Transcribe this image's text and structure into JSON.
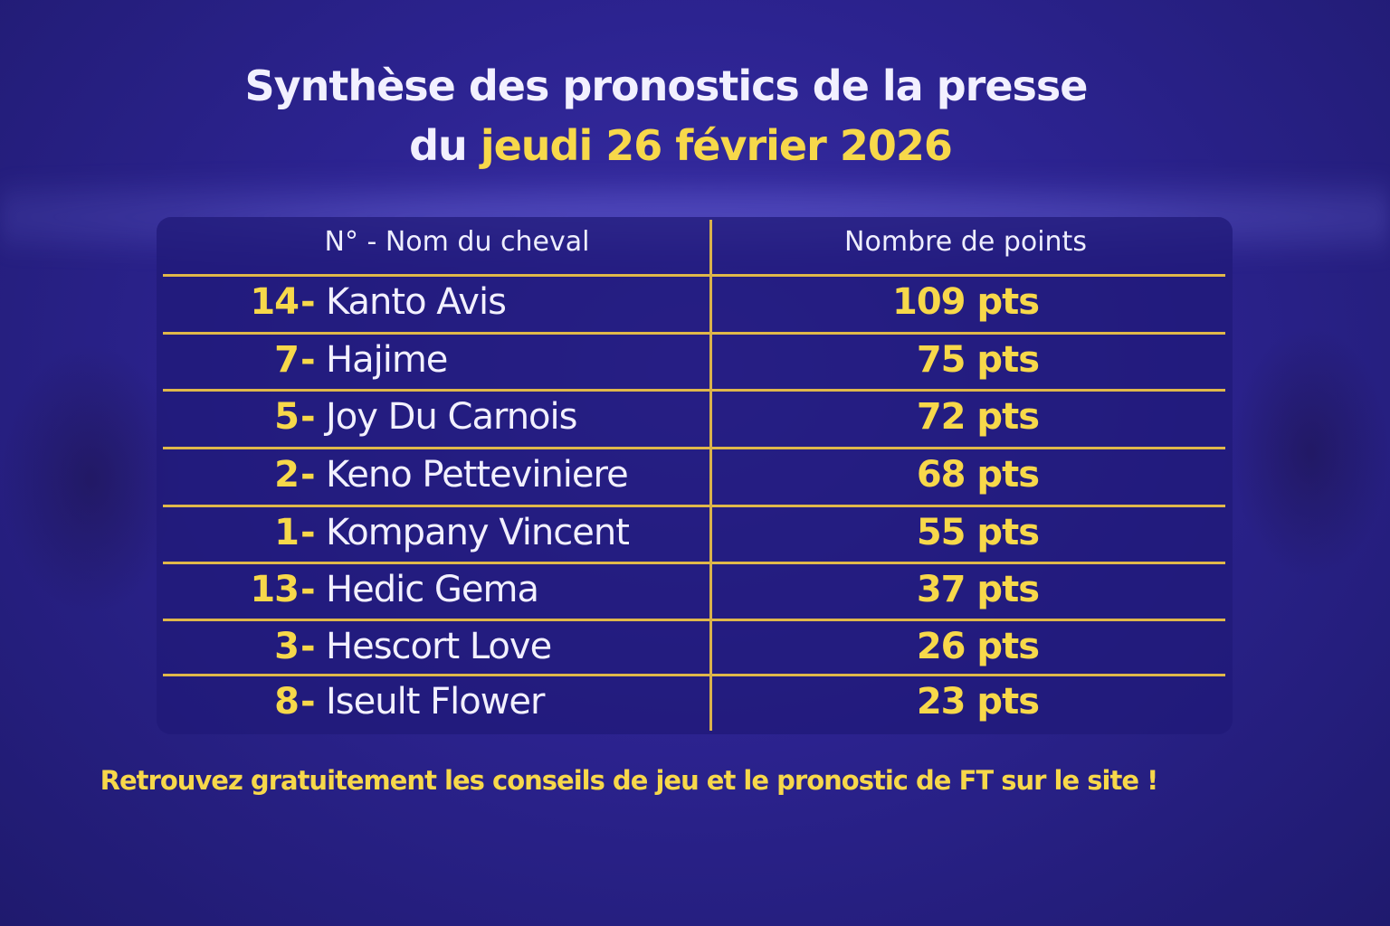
{
  "title": {
    "line1": "Synthèse des pronostics de la presse",
    "line2_prefix": "du",
    "line2_date": "jeudi 26 février 2026"
  },
  "table": {
    "headers": [
      "N° - Nom du cheval",
      "Nombre de points"
    ],
    "rows": [
      {
        "num": "14",
        "name": "Kanto Avis",
        "points": "109 pts"
      },
      {
        "num": "7",
        "name": "Hajime",
        "points": "75 pts"
      },
      {
        "num": "5",
        "name": "Joy Du Carnois",
        "points": "72 pts"
      },
      {
        "num": "2",
        "name": "Keno Petteviniere",
        "points": "68 pts"
      },
      {
        "num": "1",
        "name": "Kompany Vincent",
        "points": "55 pts"
      },
      {
        "num": "13",
        "name": "Hedic Gema",
        "points": "37 pts"
      },
      {
        "num": "3",
        "name": "Hescort Love",
        "points": "26 pts"
      },
      {
        "num": "8",
        "name": "Iseult Flower",
        "points": "23 pts"
      }
    ],
    "separator": "-"
  },
  "footer": "Retrouvez gratuitement les conseils de jeu et le pronostic de FT sur le site !",
  "colors": {
    "accent": "#f7d84a",
    "background": "#2c2390",
    "text": "#f2f0ff"
  }
}
